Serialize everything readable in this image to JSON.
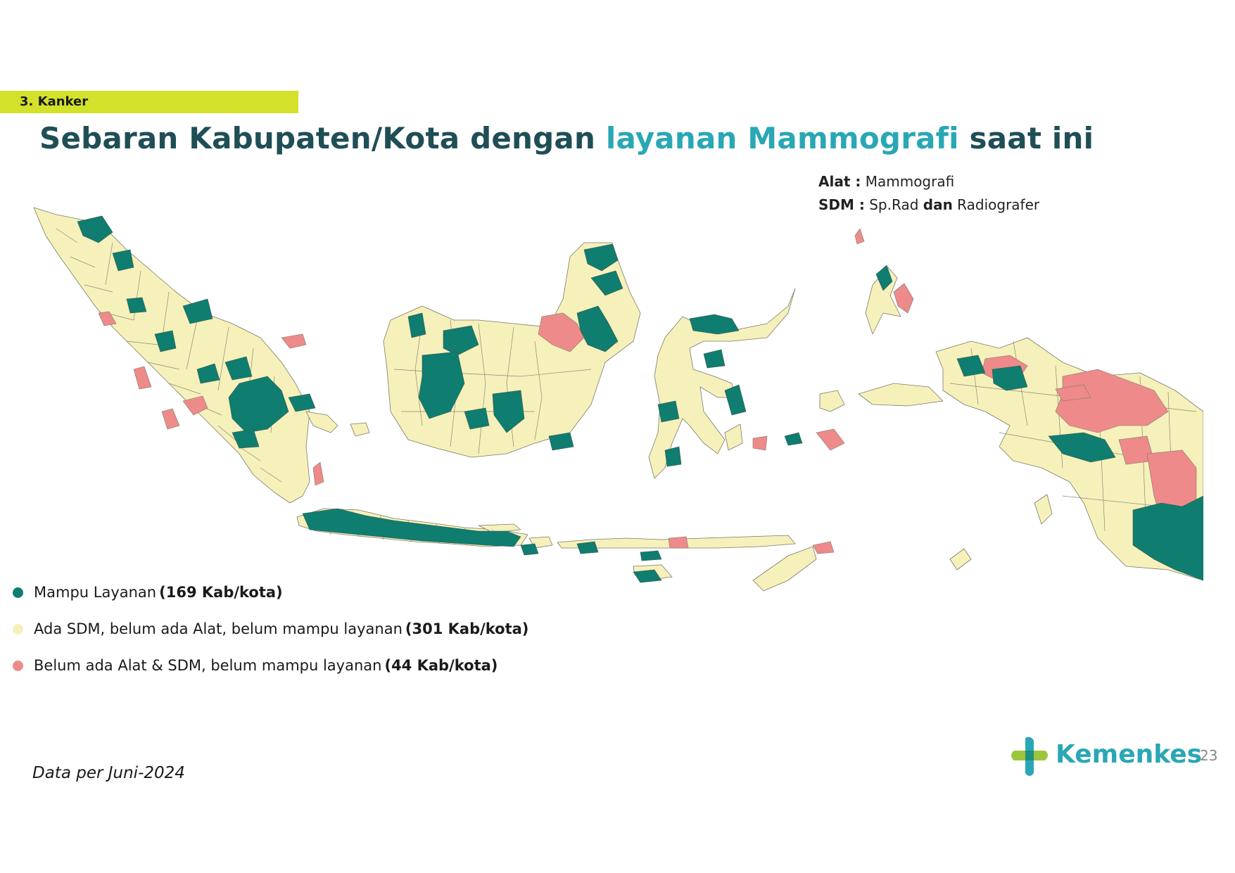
{
  "section_tag": "3. Kanker",
  "title": {
    "part1": "Sebaran Kabupaten/Kota dengan ",
    "highlight": "layanan Mammografi",
    "part2": " saat ini"
  },
  "spec": {
    "alat_label": "Alat :",
    "alat_value": "Mammografi",
    "sdm_label": "SDM :",
    "sdm_value1": "Sp.Rad",
    "sdm_and": "dan",
    "sdm_value2": "Radiografer"
  },
  "legend": [
    {
      "label": "Mampu Layanan",
      "count": "(169 Kab/kota)",
      "color": "#0f7d6f"
    },
    {
      "label": "Ada SDM, belum ada Alat, belum mampu layanan",
      "count": "(301 Kab/kota)",
      "color": "#f6f0bb"
    },
    {
      "label": "Belum ada Alat & SDM, belum mampu layanan",
      "count": "(44 Kab/kota)",
      "color": "#ee8a8a"
    }
  ],
  "map_colors": {
    "mampu": "#0f7d6f",
    "ada_sdm": "#f6f0bb",
    "belum": "#ee8a8a",
    "border": "#7a7a6a"
  },
  "footnote": "Data per Juni-2024",
  "logo_text": "Kemenkes",
  "page_number": "23"
}
